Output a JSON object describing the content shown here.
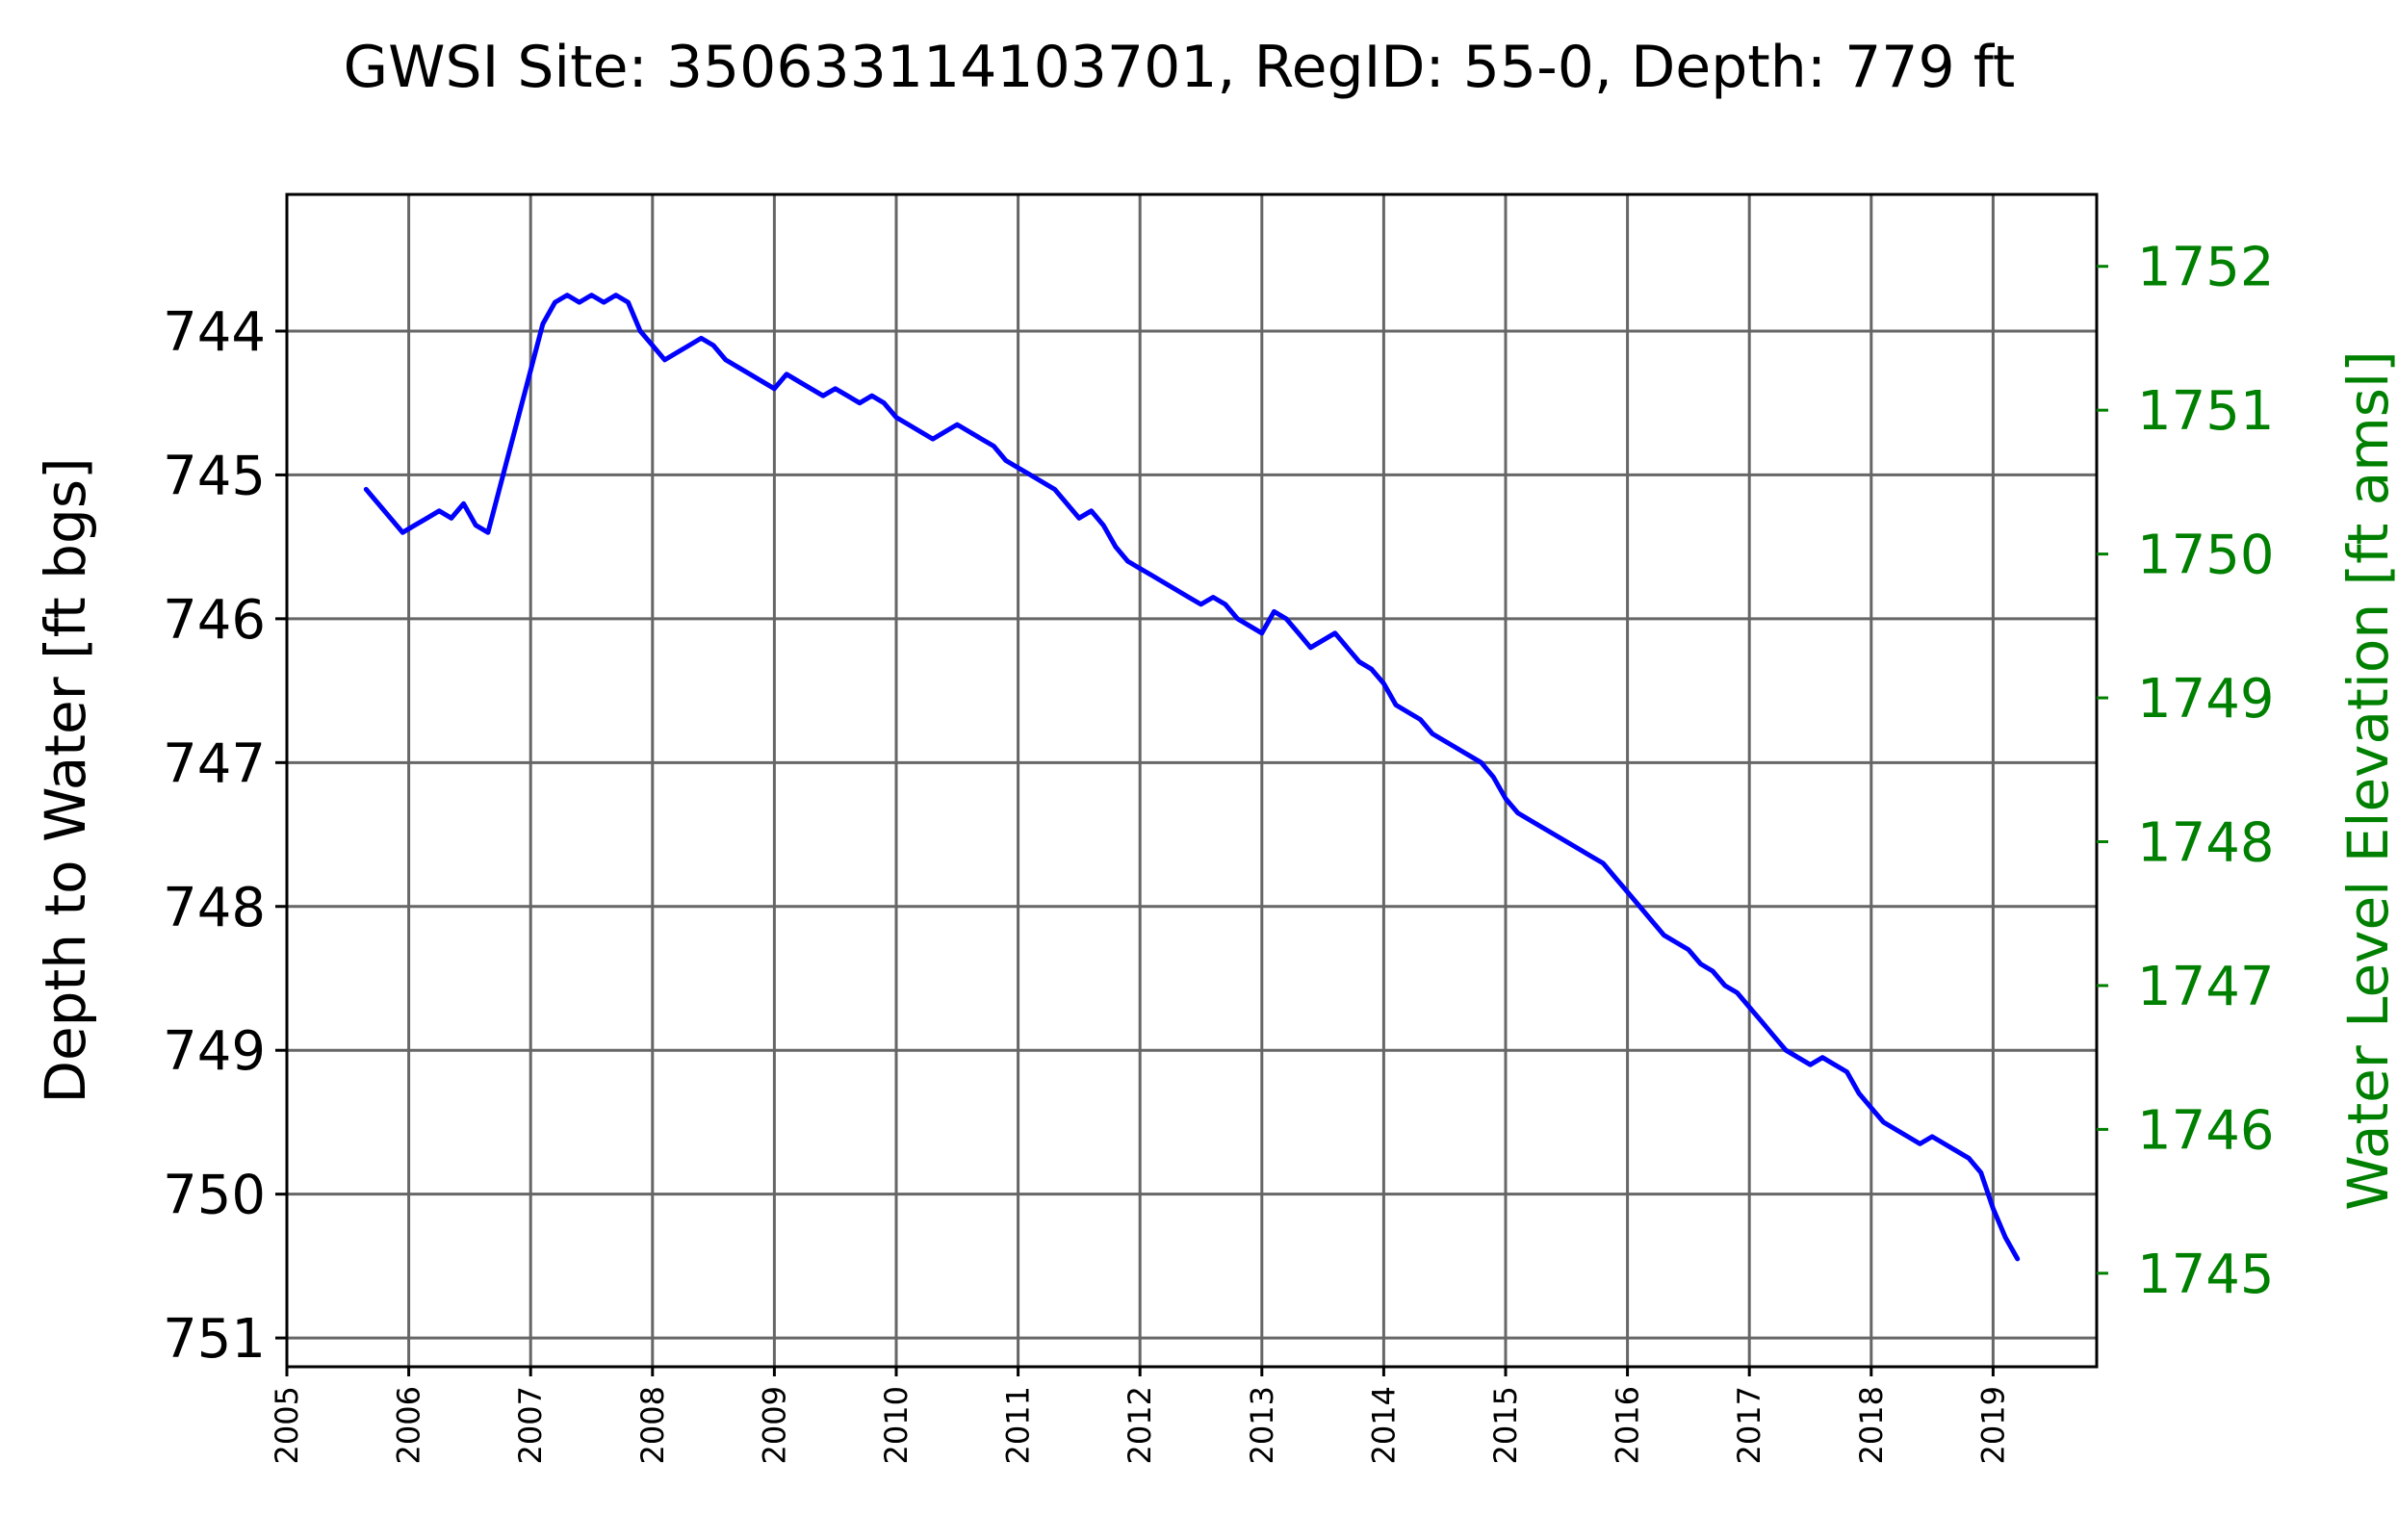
{
  "colors": {
    "series": "#0000ff",
    "right_axis": "#008000",
    "grid": "#666666"
  },
  "chart_data": {
    "type": "line",
    "title": "GWSI Site: 350633114103701, RegID: 55-0, Depth: 779 ft",
    "ylabel": "Depth to Water [ft bgs]",
    "ylabel_right": "Water Level Elevation [ft amsl]",
    "xlim": [
      2005.0,
      2019.85
    ],
    "ylim": [
      751.2,
      743.05
    ],
    "ylim_right": [
      1744.35,
      1752.5
    ],
    "y_inverted": true,
    "grid": true,
    "xticks": [
      "2005",
      "2006",
      "2007",
      "2008",
      "2009",
      "2010",
      "2011",
      "2012",
      "2013",
      "2014",
      "2015",
      "2016",
      "2017",
      "2018",
      "2019"
    ],
    "yticks_left": [
      "744",
      "745",
      "746",
      "747",
      "748",
      "749",
      "750",
      "751"
    ],
    "yticks_right": [
      "1752",
      "1751",
      "1750",
      "1749",
      "1748",
      "1747",
      "1746",
      "1745"
    ],
    "series": [
      {
        "x": [
          2005.65,
          2005.75,
          2005.85,
          2005.95,
          2006.05,
          2006.15,
          2006.25,
          2006.35,
          2006.45,
          2006.55,
          2006.65,
          2007.1,
          2007.2,
          2007.3,
          2007.4,
          2007.5,
          2007.6,
          2007.7,
          2007.8,
          2007.9,
          2008.0,
          2008.1,
          2008.2,
          2008.3,
          2008.4,
          2008.5,
          2008.6,
          2008.7,
          2008.8,
          2008.9,
          2009.0,
          2009.1,
          2009.2,
          2009.3,
          2009.4,
          2009.5,
          2009.6,
          2009.7,
          2009.8,
          2009.9,
          2010.0,
          2010.1,
          2010.2,
          2010.3,
          2010.4,
          2010.5,
          2010.6,
          2010.7,
          2010.8,
          2010.9,
          2011.0,
          2011.1,
          2011.2,
          2011.3,
          2011.4,
          2011.5,
          2011.6,
          2011.7,
          2011.8,
          2011.9,
          2012.0,
          2012.1,
          2012.2,
          2012.3,
          2012.4,
          2012.5,
          2012.6,
          2012.7,
          2012.8,
          2012.9,
          2013.0,
          2013.1,
          2013.2,
          2013.3,
          2013.4,
          2013.5,
          2013.6,
          2013.7,
          2013.8,
          2013.9,
          2014.0,
          2014.1,
          2014.2,
          2014.3,
          2014.4,
          2014.5,
          2014.6,
          2014.7,
          2014.8,
          2014.9,
          2015.0,
          2015.1,
          2015.2,
          2015.3,
          2015.4,
          2015.5,
          2015.6,
          2015.7,
          2015.8,
          2015.9,
          2016.0,
          2016.1,
          2016.2,
          2016.3,
          2016.4,
          2016.5,
          2016.6,
          2016.7,
          2016.8,
          2016.9,
          2017.0,
          2017.1,
          2017.2,
          2017.3,
          2017.4,
          2017.5,
          2017.6,
          2017.7,
          2017.8,
          2017.9,
          2018.0,
          2018.1,
          2018.2,
          2018.3,
          2018.4,
          2018.5,
          2018.6,
          2018.7,
          2018.8,
          2018.9,
          2019.0,
          2019.1,
          2019.2
        ],
        "values": [
          745.1,
          745.2,
          745.3,
          745.4,
          745.35,
          745.3,
          745.25,
          745.3,
          745.2,
          745.35,
          745.4,
          743.95,
          743.8,
          743.75,
          743.8,
          743.75,
          743.8,
          743.75,
          743.8,
          744.0,
          744.1,
          744.2,
          744.15,
          744.1,
          744.05,
          744.1,
          744.2,
          744.25,
          744.3,
          744.35,
          744.4,
          744.3,
          744.35,
          744.4,
          744.45,
          744.4,
          744.45,
          744.5,
          744.45,
          744.5,
          744.6,
          744.65,
          744.7,
          744.75,
          744.7,
          744.65,
          744.7,
          744.75,
          744.8,
          744.9,
          744.95,
          745.0,
          745.05,
          745.1,
          745.2,
          745.3,
          745.25,
          745.35,
          745.5,
          745.6,
          745.65,
          745.7,
          745.75,
          745.8,
          745.85,
          745.9,
          745.85,
          745.9,
          746.0,
          746.05,
          746.1,
          745.95,
          746.0,
          746.1,
          746.2,
          746.15,
          746.1,
          746.2,
          746.3,
          746.35,
          746.45,
          746.6,
          746.65,
          746.7,
          746.8,
          746.85,
          746.9,
          746.95,
          747.0,
          747.1,
          747.25,
          747.35,
          747.4,
          747.45,
          747.5,
          747.55,
          747.6,
          747.65,
          747.7,
          747.8,
          747.9,
          748.0,
          748.1,
          748.2,
          748.25,
          748.3,
          748.4,
          748.45,
          748.55,
          748.6,
          748.7,
          748.8,
          748.9,
          749.0,
          749.05,
          749.1,
          749.05,
          749.1,
          749.15,
          749.3,
          749.4,
          749.5,
          749.55,
          749.6,
          749.65,
          749.6,
          749.65,
          749.7,
          749.75,
          749.85,
          750.1,
          750.3,
          750.45
        ]
      }
    ]
  }
}
